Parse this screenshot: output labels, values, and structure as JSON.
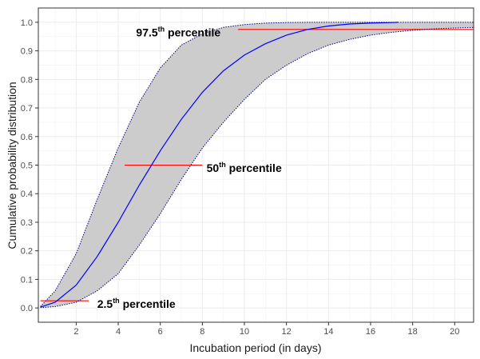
{
  "chart_data": {
    "type": "line",
    "title": "",
    "xlabel": "Incubation period (in days)",
    "ylabel": "Cumulative probability distribution",
    "xlim": [
      0.2,
      20.9
    ],
    "ylim": [
      -0.05,
      1.05
    ],
    "x_ticks": [
      2,
      4,
      6,
      8,
      10,
      12,
      14,
      16,
      18,
      20
    ],
    "x_tick_labels": [
      "2",
      "4",
      "6",
      "8",
      "10",
      "12",
      "14",
      "16",
      "18",
      "20"
    ],
    "y_ticks": [
      0.0,
      0.1,
      0.2,
      0.3,
      0.4,
      0.5,
      0.6,
      0.7,
      0.8,
      0.9,
      1.0
    ],
    "y_tick_labels": [
      "0.0",
      "0.1",
      "0.2",
      "0.3",
      "0.4",
      "0.5",
      "0.6",
      "0.7",
      "0.8",
      "0.9",
      "1.0"
    ],
    "grid": true,
    "legend": "none",
    "series": [
      {
        "role": "median",
        "color": "#0000ff",
        "x": [
          0.3,
          1,
          2,
          3,
          4,
          5,
          6,
          7,
          8,
          9,
          10,
          11,
          12,
          13,
          14,
          15,
          16,
          17,
          17.3
        ],
        "y": [
          0.003,
          0.02,
          0.08,
          0.18,
          0.3,
          0.43,
          0.55,
          0.66,
          0.755,
          0.83,
          0.885,
          0.925,
          0.955,
          0.975,
          0.987,
          0.994,
          0.997,
          0.999,
          1.0
        ]
      },
      {
        "role": "upper-bound",
        "color": "#000080",
        "x": [
          0.3,
          1,
          2,
          3,
          4,
          5,
          6,
          7,
          8,
          9,
          10,
          11,
          12,
          13,
          14,
          15,
          16,
          17,
          18,
          19,
          20,
          20.9
        ],
        "y": [
          0.005,
          0.06,
          0.19,
          0.38,
          0.56,
          0.72,
          0.84,
          0.92,
          0.96,
          0.982,
          0.992,
          0.997,
          0.999,
          1.0,
          1.0,
          1.0,
          1.0,
          1.0,
          1.0,
          1.0,
          1.0,
          1.0
        ]
      },
      {
        "role": "lower-bound",
        "color": "#000080",
        "x": [
          0.3,
          1,
          2,
          3,
          4,
          5,
          6,
          7,
          8,
          9,
          10,
          11,
          12,
          13,
          14,
          15,
          16,
          17,
          18,
          19,
          20,
          20.9
        ],
        "y": [
          0.001,
          0.005,
          0.02,
          0.06,
          0.12,
          0.22,
          0.33,
          0.45,
          0.56,
          0.65,
          0.73,
          0.8,
          0.85,
          0.89,
          0.92,
          0.94,
          0.955,
          0.965,
          0.972,
          0.977,
          0.98,
          0.982
        ]
      }
    ],
    "band": {
      "fill": "#cccccc",
      "between": [
        "upper-bound",
        "lower-bound"
      ]
    },
    "reference_lines": [
      {
        "y": 0.025,
        "x_start": 0.3,
        "x_end": 2.6,
        "color": "#ff0000"
      },
      {
        "y": 0.5,
        "x_start": 4.3,
        "x_end": 8.0,
        "color": "#ff0000"
      },
      {
        "y": 0.975,
        "x_start": 9.7,
        "x_end": 20.9,
        "color": "#ff0000"
      }
    ],
    "annotations": [
      {
        "main": "2.5",
        "sup": "th",
        "rest": " percentile",
        "x": 3.0,
        "y": 0.015
      },
      {
        "main": "50",
        "sup": "th",
        "rest": " percentile",
        "x": 8.2,
        "y": 0.49
      },
      {
        "main": "97.5",
        "sup": "th",
        "rest": " percentile",
        "x": 4.85,
        "y": 0.965
      }
    ]
  }
}
